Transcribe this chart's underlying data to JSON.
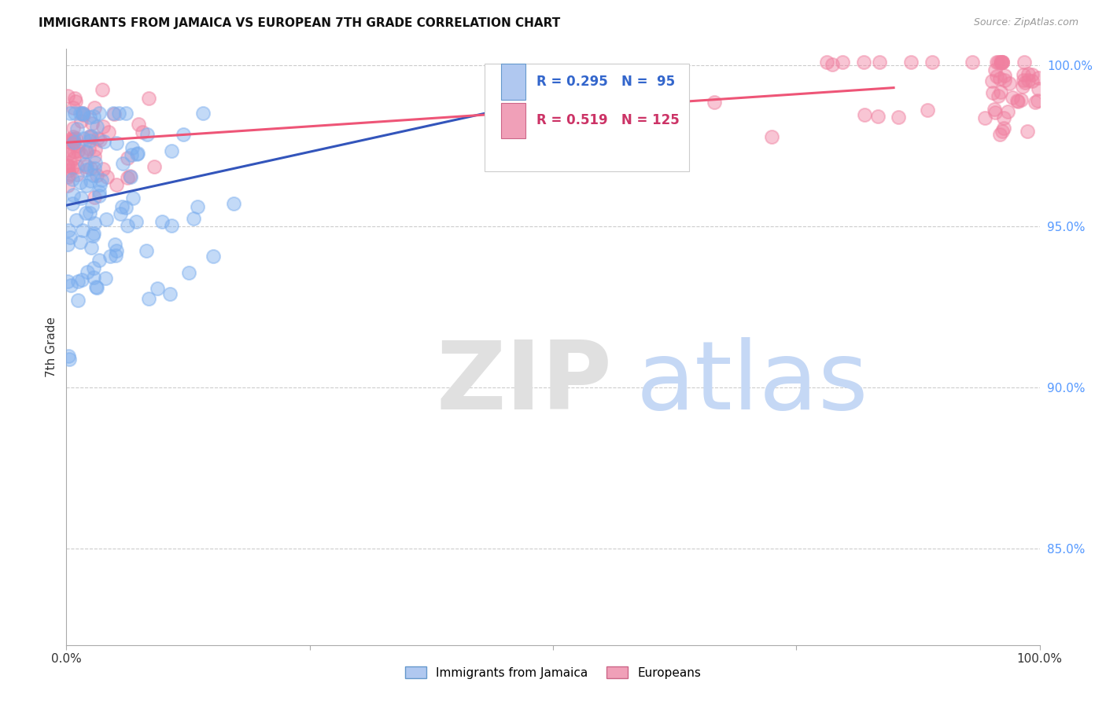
{
  "title": "IMMIGRANTS FROM JAMAICA VS EUROPEAN 7TH GRADE CORRELATION CHART",
  "source": "Source: ZipAtlas.com",
  "ylabel": "7th Grade",
  "xlim": [
    0.0,
    1.0
  ],
  "ylim": [
    0.82,
    1.005
  ],
  "ytick_values": [
    0.85,
    0.9,
    0.95,
    1.0
  ],
  "ytick_labels_right": [
    "85.0%",
    "90.0%",
    "95.0%",
    "100.0%"
  ],
  "blue_R": 0.295,
  "blue_N": 95,
  "pink_R": 0.519,
  "pink_N": 125,
  "blue_color": "#7aadee",
  "pink_color": "#f080a0",
  "blue_line_color": "#3355bb",
  "pink_line_color": "#ee5577",
  "legend_label_blue": "Immigrants from Jamaica",
  "legend_label_pink": "Europeans",
  "background_color": "#ffffff",
  "grid_color": "#cccccc",
  "blue_line_x": [
    0.0,
    0.55
  ],
  "blue_line_y": [
    0.9565,
    0.993
  ],
  "pink_line_x": [
    0.0,
    0.85
  ],
  "pink_line_y": [
    0.976,
    0.993
  ],
  "seed": 42
}
